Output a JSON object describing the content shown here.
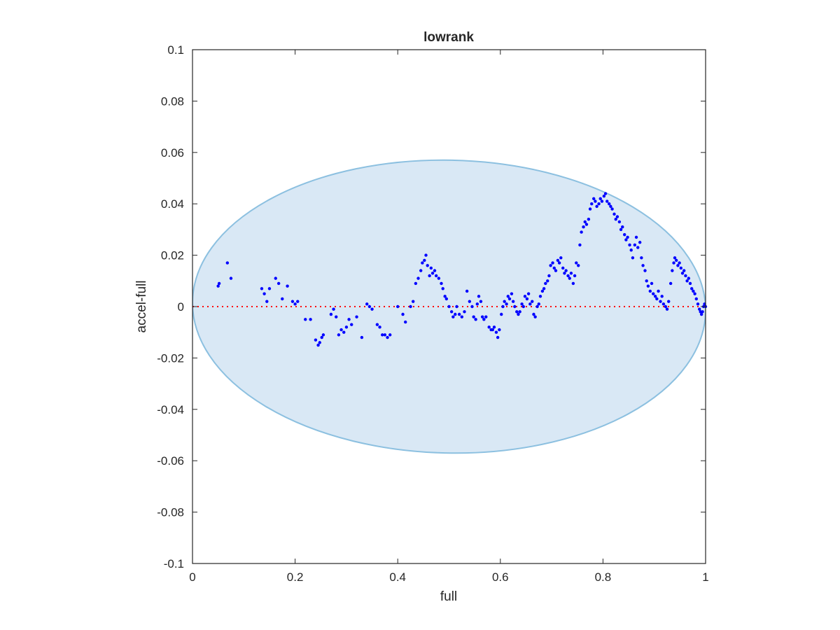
{
  "chart_data": {
    "type": "scatter",
    "title": "lowrank",
    "xlabel": "full",
    "ylabel": "accel-full",
    "xlim": [
      0,
      1
    ],
    "ylim": [
      -0.1,
      0.1
    ],
    "x_ticks": [
      0,
      0.2,
      0.4,
      0.6,
      0.8,
      1
    ],
    "x_tick_labels": [
      "0",
      "0.2",
      "0.4",
      "0.6",
      "0.8",
      "1"
    ],
    "y_ticks": [
      -0.1,
      -0.08,
      -0.06,
      -0.04,
      -0.02,
      0,
      0.02,
      0.04,
      0.06,
      0.08,
      0.1
    ],
    "y_tick_labels": [
      "-0.1",
      "-0.08",
      "-0.06",
      "-0.04",
      "-0.02",
      "0",
      "0.02",
      "0.04",
      "0.06",
      "0.08",
      "0.1"
    ],
    "grid": false,
    "region": {
      "shape": "ellipse",
      "center": [
        0.5,
        0
      ],
      "x_radius": 0.5,
      "y_radius": 0.057,
      "rotation_deg": 1.2,
      "fill": "#d9e8f5",
      "stroke": "#8cc0e0"
    },
    "reference_line": {
      "y": 0,
      "style": "dotted",
      "color": "#ff0000"
    },
    "points": {
      "color": "#0000ff",
      "values": [
        [
          0.05,
          0.008
        ],
        [
          0.052,
          0.009
        ],
        [
          0.068,
          0.017
        ],
        [
          0.075,
          0.011
        ],
        [
          0.135,
          0.007
        ],
        [
          0.14,
          0.005
        ],
        [
          0.145,
          0.002
        ],
        [
          0.15,
          0.007
        ],
        [
          0.162,
          0.011
        ],
        [
          0.168,
          0.009
        ],
        [
          0.175,
          0.003
        ],
        [
          0.185,
          0.008
        ],
        [
          0.195,
          0.002
        ],
        [
          0.2,
          0.001
        ],
        [
          0.205,
          0.002
        ],
        [
          0.22,
          -0.005
        ],
        [
          0.23,
          -0.005
        ],
        [
          0.24,
          -0.013
        ],
        [
          0.245,
          -0.015
        ],
        [
          0.248,
          -0.014
        ],
        [
          0.252,
          -0.012
        ],
        [
          0.255,
          -0.011
        ],
        [
          0.27,
          -0.003
        ],
        [
          0.275,
          -0.001
        ],
        [
          0.28,
          -0.004
        ],
        [
          0.285,
          -0.011
        ],
        [
          0.29,
          -0.009
        ],
        [
          0.295,
          -0.01
        ],
        [
          0.3,
          -0.008
        ],
        [
          0.305,
          -0.005
        ],
        [
          0.31,
          -0.007
        ],
        [
          0.32,
          -0.004
        ],
        [
          0.33,
          -0.012
        ],
        [
          0.34,
          0.001
        ],
        [
          0.345,
          0.0
        ],
        [
          0.35,
          -0.001
        ],
        [
          0.36,
          -0.007
        ],
        [
          0.365,
          -0.008
        ],
        [
          0.37,
          -0.011
        ],
        [
          0.375,
          -0.011
        ],
        [
          0.38,
          -0.012
        ],
        [
          0.385,
          -0.011
        ],
        [
          0.4,
          0.0
        ],
        [
          0.41,
          -0.003
        ],
        [
          0.415,
          -0.006
        ],
        [
          0.425,
          0.0
        ],
        [
          0.43,
          0.002
        ],
        [
          0.435,
          0.009
        ],
        [
          0.44,
          0.011
        ],
        [
          0.445,
          0.014
        ],
        [
          0.448,
          0.017
        ],
        [
          0.452,
          0.018
        ],
        [
          0.455,
          0.02
        ],
        [
          0.458,
          0.016
        ],
        [
          0.462,
          0.012
        ],
        [
          0.465,
          0.015
        ],
        [
          0.468,
          0.013
        ],
        [
          0.472,
          0.014
        ],
        [
          0.475,
          0.012
        ],
        [
          0.48,
          0.011
        ],
        [
          0.485,
          0.009
        ],
        [
          0.488,
          0.007
        ],
        [
          0.492,
          0.004
        ],
        [
          0.495,
          0.003
        ],
        [
          0.5,
          0.0
        ],
        [
          0.505,
          -0.002
        ],
        [
          0.508,
          -0.004
        ],
        [
          0.512,
          -0.003
        ],
        [
          0.515,
          0.0
        ],
        [
          0.52,
          -0.003
        ],
        [
          0.525,
          -0.004
        ],
        [
          0.53,
          -0.002
        ],
        [
          0.535,
          0.006
        ],
        [
          0.54,
          0.002
        ],
        [
          0.545,
          0.0
        ],
        [
          0.548,
          -0.004
        ],
        [
          0.552,
          -0.005
        ],
        [
          0.555,
          0.001
        ],
        [
          0.558,
          0.004
        ],
        [
          0.562,
          0.002
        ],
        [
          0.565,
          -0.004
        ],
        [
          0.568,
          -0.005
        ],
        [
          0.572,
          -0.004
        ],
        [
          0.578,
          -0.008
        ],
        [
          0.582,
          -0.009
        ],
        [
          0.585,
          -0.009
        ],
        [
          0.588,
          -0.008
        ],
        [
          0.592,
          -0.01
        ],
        [
          0.595,
          -0.012
        ],
        [
          0.598,
          -0.009
        ],
        [
          0.602,
          -0.003
        ],
        [
          0.605,
          0.0
        ],
        [
          0.608,
          0.002
        ],
        [
          0.612,
          0.001
        ],
        [
          0.615,
          0.004
        ],
        [
          0.618,
          0.003
        ],
        [
          0.622,
          0.005
        ],
        [
          0.625,
          0.002
        ],
        [
          0.628,
          0.0
        ],
        [
          0.632,
          -0.002
        ],
        [
          0.635,
          -0.003
        ],
        [
          0.638,
          -0.002
        ],
        [
          0.642,
          0.001
        ],
        [
          0.645,
          0.0
        ],
        [
          0.648,
          0.004
        ],
        [
          0.652,
          0.003
        ],
        [
          0.655,
          0.005
        ],
        [
          0.658,
          0.001
        ],
        [
          0.662,
          0.002
        ],
        [
          0.665,
          -0.003
        ],
        [
          0.668,
          -0.004
        ],
        [
          0.672,
          0.0
        ],
        [
          0.675,
          0.001
        ],
        [
          0.678,
          0.004
        ],
        [
          0.682,
          0.006
        ],
        [
          0.685,
          0.007
        ],
        [
          0.688,
          0.009
        ],
        [
          0.692,
          0.01
        ],
        [
          0.695,
          0.012
        ],
        [
          0.698,
          0.016
        ],
        [
          0.702,
          0.017
        ],
        [
          0.705,
          0.015
        ],
        [
          0.708,
          0.014
        ],
        [
          0.712,
          0.018
        ],
        [
          0.715,
          0.017
        ],
        [
          0.718,
          0.019
        ],
        [
          0.722,
          0.015
        ],
        [
          0.725,
          0.013
        ],
        [
          0.728,
          0.014
        ],
        [
          0.732,
          0.012
        ],
        [
          0.735,
          0.011
        ],
        [
          0.738,
          0.013
        ],
        [
          0.742,
          0.009
        ],
        [
          0.745,
          0.012
        ],
        [
          0.748,
          0.017
        ],
        [
          0.752,
          0.016
        ],
        [
          0.755,
          0.024
        ],
        [
          0.758,
          0.029
        ],
        [
          0.762,
          0.031
        ],
        [
          0.765,
          0.033
        ],
        [
          0.768,
          0.032
        ],
        [
          0.772,
          0.034
        ],
        [
          0.775,
          0.038
        ],
        [
          0.778,
          0.04
        ],
        [
          0.782,
          0.042
        ],
        [
          0.785,
          0.041
        ],
        [
          0.788,
          0.039
        ],
        [
          0.792,
          0.04
        ],
        [
          0.795,
          0.042
        ],
        [
          0.798,
          0.041
        ],
        [
          0.802,
          0.043
        ],
        [
          0.805,
          0.044
        ],
        [
          0.808,
          0.041
        ],
        [
          0.812,
          0.04
        ],
        [
          0.815,
          0.039
        ],
        [
          0.818,
          0.038
        ],
        [
          0.822,
          0.036
        ],
        [
          0.825,
          0.034
        ],
        [
          0.828,
          0.035
        ],
        [
          0.832,
          0.033
        ],
        [
          0.835,
          0.03
        ],
        [
          0.838,
          0.031
        ],
        [
          0.842,
          0.028
        ],
        [
          0.845,
          0.026
        ],
        [
          0.848,
          0.027
        ],
        [
          0.852,
          0.024
        ],
        [
          0.855,
          0.022
        ],
        [
          0.858,
          0.019
        ],
        [
          0.862,
          0.024
        ],
        [
          0.865,
          0.027
        ],
        [
          0.868,
          0.023
        ],
        [
          0.872,
          0.025
        ],
        [
          0.875,
          0.019
        ],
        [
          0.878,
          0.016
        ],
        [
          0.882,
          0.014
        ],
        [
          0.885,
          0.01
        ],
        [
          0.888,
          0.008
        ],
        [
          0.892,
          0.006
        ],
        [
          0.895,
          0.009
        ],
        [
          0.898,
          0.005
        ],
        [
          0.902,
          0.004
        ],
        [
          0.905,
          0.003
        ],
        [
          0.908,
          0.006
        ],
        [
          0.912,
          0.002
        ],
        [
          0.915,
          0.004
        ],
        [
          0.918,
          0.001
        ],
        [
          0.922,
          0.0
        ],
        [
          0.925,
          -0.001
        ],
        [
          0.928,
          0.002
        ],
        [
          0.932,
          0.009
        ],
        [
          0.935,
          0.014
        ],
        [
          0.938,
          0.017
        ],
        [
          0.94,
          0.019
        ],
        [
          0.943,
          0.018
        ],
        [
          0.946,
          0.016
        ],
        [
          0.949,
          0.017
        ],
        [
          0.952,
          0.015
        ],
        [
          0.955,
          0.013
        ],
        [
          0.958,
          0.014
        ],
        [
          0.961,
          0.012
        ],
        [
          0.964,
          0.01
        ],
        [
          0.967,
          0.011
        ],
        [
          0.97,
          0.009
        ],
        [
          0.973,
          0.007
        ],
        [
          0.976,
          0.006
        ],
        [
          0.979,
          0.005
        ],
        [
          0.982,
          0.003
        ],
        [
          0.985,
          0.001
        ],
        [
          0.988,
          -0.001
        ],
        [
          0.99,
          -0.002
        ],
        [
          0.992,
          -0.003
        ],
        [
          0.994,
          -0.002
        ],
        [
          0.996,
          0.0
        ],
        [
          0.998,
          0.001
        ],
        [
          1.0,
          0.0
        ]
      ]
    }
  }
}
